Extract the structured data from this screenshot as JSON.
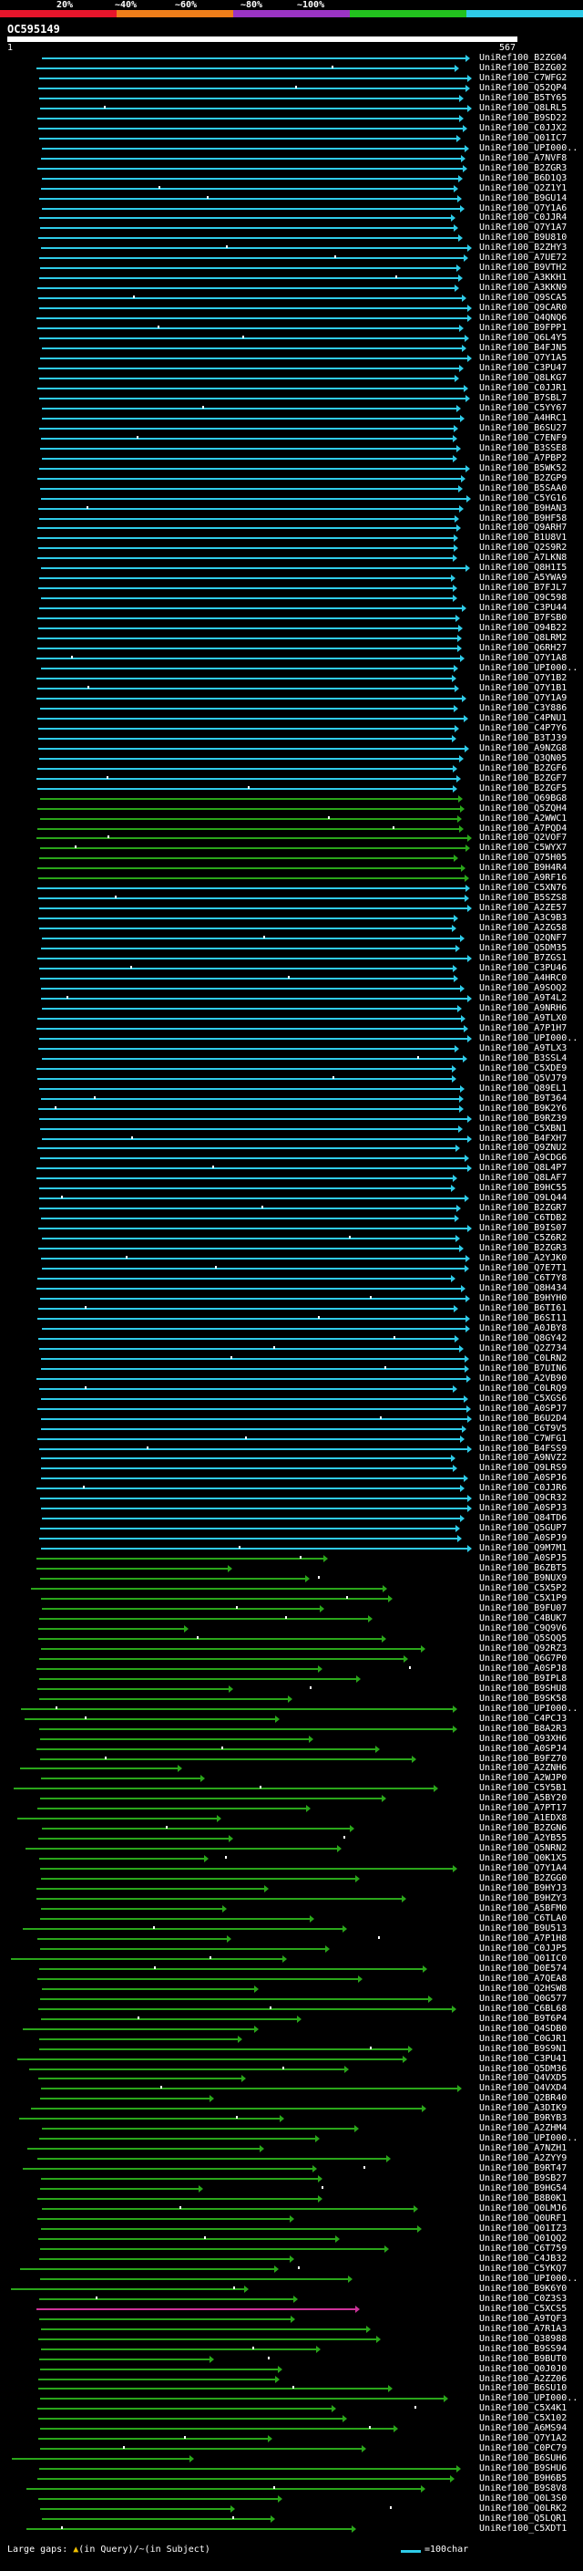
{
  "scale": {
    "labels": [
      "20%",
      "~40%",
      "~60%",
      "~80%",
      "~100%"
    ],
    "colors": [
      "#e8152b",
      "#f07e1a",
      "#9b34c4",
      "#22c21e",
      "#2ecbe8"
    ]
  },
  "query": {
    "id": "OC595149",
    "start": "1",
    "end": "567"
  },
  "colors": {
    "cyan": "#2ecbe8",
    "green": "#2aa61a",
    "magenta": "#cc3399",
    "query": "#ffffff"
  },
  "hits": [
    "UniRef100_B2ZG04",
    "UniRef100_B2ZG02",
    "UniRef100_C7WFG2",
    "UniRef100_Q52QP4",
    "UniRef100_B5TY65",
    "UniRef100_Q8LRL5",
    "UniRef100_B9SD22",
    "UniRef100_C0JJX2",
    "UniRef100_Q01IC7",
    "UniRef100_UPI000..",
    "UniRef100_A7NVF8",
    "UniRef100_B2ZGR3",
    "UniRef100_B6D1Q3",
    "UniRef100_Q2Z1Y1",
    "UniRef100_B9GU14",
    "UniRef100_Q7Y1A6",
    "UniRef100_C0JJR4",
    "UniRef100_Q7Y1A7",
    "UniRef100_B9U810",
    "UniRef100_B2ZHY3",
    "UniRef100_A7UE72",
    "UniRef100_B9VTH2",
    "UniRef100_A3KKH1",
    "UniRef100_A3KKN9",
    "UniRef100_Q9SCA5",
    "UniRef100_Q9CAR0",
    "UniRef100_Q4QNQ6",
    "UniRef100_B9FPP1",
    "UniRef100_Q6L4Y5",
    "UniRef100_B4FJN5",
    "UniRef100_Q7Y1A5",
    "UniRef100_C3PU47",
    "UniRef100_Q8LKG7",
    "UniRef100_C0JJR1",
    "UniRef100_B7SBL7",
    "UniRef100_C5YY67",
    "UniRef100_A4HRC1",
    "UniRef100_B6SU27",
    "UniRef100_C7ENF9",
    "UniRef100_B3SSE8",
    "UniRef100_A7PBP2",
    "UniRef100_B5WK52",
    "UniRef100_B2ZGP9",
    "UniRef100_B5SAA0",
    "UniRef100_C5YG16",
    "UniRef100_B9HAN3",
    "UniRef100_B9HF58",
    "UniRef100_Q9ARH7",
    "UniRef100_B1U8V1",
    "UniRef100_Q2S9R2",
    "UniRef100_A7LKN8",
    "UniRef100_Q8H1I5",
    "UniRef100_A5YWA9",
    "UniRef100_B7FJL7",
    "UniRef100_Q9C598",
    "UniRef100_C3PU44",
    "UniRef100_B7FSB0",
    "UniRef100_Q94B22",
    "UniRef100_Q8LRM2",
    "UniRef100_Q6RH27",
    "UniRef100_Q7Y1A8",
    "UniRef100_UPI000..",
    "UniRef100_Q7Y1B2",
    "UniRef100_Q7Y1B1",
    "UniRef100_Q7Y1A9",
    "UniRef100_C3Y886",
    "UniRef100_C4PNU1",
    "UniRef100_C4P7Y6",
    "UniRef100_B3TJ39",
    "UniRef100_A9NZG8",
    "UniRef100_Q3QN05",
    "UniRef100_B2ZGF6",
    "UniRef100_B2ZGF7",
    "UniRef100_B2ZGF5",
    "UniRef100_Q69BG8",
    "UniRef100_Q5ZQH4",
    "UniRef100_A2WWC1",
    "UniRef100_A7PQD4",
    "UniRef100_Q2VOF7",
    "UniRef100_C5WYX7",
    "UniRef100_Q75H05",
    "UniRef100_B9H4R4",
    "UniRef100_A9RF16",
    "UniRef100_C5XN76",
    "UniRef100_B5SZS8",
    "UniRef100_A2ZE57",
    "UniRef100_A3C9B3",
    "UniRef100_A2ZG58",
    "UniRef100_Q2QNF7",
    "UniRef100_Q5DM35",
    "UniRef100_B7ZGS1",
    "UniRef100_C3PU46",
    "UniRef100_A4HRC0",
    "UniRef100_A9SOQ2",
    "UniRef100_A9T4L2",
    "UniRef100_A9NRH6",
    "UniRef100_A9TLX0",
    "UniRef100_A7P1H7",
    "UniRef100_UPI000..",
    "UniRef100_A9TLX3",
    "UniRef100_B3SSL4",
    "UniRef100_C5XDE9",
    "UniRef100_Q5VJ79",
    "UniRef100_Q89EL1",
    "UniRef100_B9T364",
    "UniRef100_B9K2Y6",
    "UniRef100_B9RZ39",
    "UniRef100_C5XBN1",
    "UniRef100_B4FXH7",
    "UniRef100_Q9ZNU2",
    "UniRef100_A9CDG6",
    "UniRef100_Q8L4P7",
    "UniRef100_Q8LAF7",
    "UniRef100_B9HC55",
    "UniRef100_Q9LQ44",
    "UniRef100_B2ZGR7",
    "UniRef100_C6TDB2",
    "UniRef100_B9IS07",
    "UniRef100_C5Z6R2",
    "UniRef100_B2ZGR3",
    "UniRef100_A2YJK0",
    "UniRef100_Q7E7T1",
    "UniRef100_C6T7Y8",
    "UniRef100_Q8H434",
    "UniRef100_B9HYH0",
    "UniRef100_B6TI61",
    "UniRef100_B6SI11",
    "UniRef100_A0JBY8",
    "UniRef100_Q8GY42",
    "UniRef100_Q2Z734",
    "UniRef100_C0LRN2",
    "UniRef100_B7UIN6",
    "UniRef100_A2VB90",
    "UniRef100_C0LRQ9",
    "UniRef100_C5XGS6",
    "UniRef100_A0SPJ7",
    "UniRef100_B6U2D4",
    "UniRef100_C6T9V5",
    "UniRef100_C7WFG1",
    "UniRef100_B4FSS9",
    "UniRef100_A9NVZ2",
    "UniRef100_Q9LRS9",
    "UniRef100_A0SPJ6",
    "UniRef100_C0JJR6",
    "UniRef100_Q9CR32",
    "UniRef100_A0SPJ3",
    "UniRef100_Q84TD6",
    "UniRef100_Q5GUP7",
    "UniRef100_A0SPJ9",
    "UniRef100_Q9M7M1",
    "UniRef100_A0SPJ5",
    "UniRef100_B6ZBT5",
    "UniRef100_B9NUX9",
    "UniRef100_C5X5P2",
    "UniRef100_C5X1P9",
    "UniRef100_B9FU07",
    "UniRef100_C4BUK7",
    "UniRef100_C9Q9V6",
    "UniRef100_Q5SQQ5",
    "UniRef100_Q92RZ3",
    "UniRef100_Q6G7P0",
    "UniRef100_A0SPJ8",
    "UniRef100_B9IPL8",
    "UniRef100_B9SHU8",
    "UniRef100_B9SK58",
    "UniRef100_UPI000..",
    "UniRef100_C4PCJ3",
    "UniRef100_B8A2R3",
    "UniRef100_Q93XH6",
    "UniRef100_A0SPJ4",
    "UniRef100_B9FZ70",
    "UniRef100_A2ZNH6",
    "UniRef100_A2WJP0",
    "UniRef100_C5Y5B1",
    "UniRef100_A5BY20",
    "UniRef100_A7PT17",
    "UniRef100_A1EDX8",
    "UniRef100_B2ZGN6",
    "UniRef100_A2YB55",
    "UniRef100_Q5NRN2",
    "UniRef100_Q0K1X5",
    "UniRef100_Q7Y1A4",
    "UniRef100_B2ZGG0",
    "UniRef100_B9HYJ3",
    "UniRef100_B9HZY3",
    "UniRef100_A5BFM0",
    "UniRef100_C6TLA0",
    "UniRef100_B9U513",
    "UniRef100_A7P1H8",
    "UniRef100_C0JJP5",
    "UniRef100_Q01IC0",
    "UniRef100_D0E574",
    "UniRef100_A7QEA8",
    "UniRef100_Q2HSW8",
    "UniRef100_Q0G577",
    "UniRef100_C6BL68",
    "UniRef100_B9T6P4",
    "UniRef100_Q4SDB0",
    "UniRef100_C0GJR1",
    "UniRef100_B9S9N1",
    "UniRef100_C3PU41",
    "UniRef100_Q5DM36",
    "UniRef100_Q4VXD5",
    "UniRef100_Q4VXD4",
    "UniRef100_Q2BR40",
    "UniRef100_A3DIK9",
    "UniRef100_B9RYB3",
    "UniRef100_A2ZHM4",
    "UniRef100_UPI000..",
    "UniRef100_A7NZH1",
    "UniRef100_A2ZYY9",
    "UniRef100_B9RT47",
    "UniRef100_B9SB27",
    "UniRef100_B9HG54",
    "UniRef100_B8B0K1",
    "UniRef100_Q0LMJ6",
    "UniRef100_Q0URF1",
    "UniRef100_Q01IZ3",
    "UniRef100_Q01QQ2",
    "UniRef100_C6T759",
    "UniRef100_C4JB32",
    "UniRef100_C5YKQ7",
    "UniRef100_UPI000..",
    "UniRef100_B9K6Y0",
    "UniRef100_C0Z3S3",
    "UniRef100_C5XCS5",
    "UniRef100_A9TQF3",
    "UniRef100_A7R1A3",
    "UniRef100_Q38988",
    "UniRef100_B9SS94",
    "UniRef100_B9BUT0",
    "UniRef100_Q0J0J0",
    "UniRef100_A2ZZ06",
    "UniRef100_B6SU10",
    "UniRef100_UPI000..",
    "UniRef100_C5X4K1",
    "UniRef100_C5X102",
    "UniRef100_A6MS94",
    "UniRef100_Q7Y1A2",
    "UniRef100_C0PC79",
    "UniRef100_B6SUH6",
    "UniRef100_B9SHU6",
    "UniRef100_B9H6B5",
    "UniRef100_B9S8V8",
    "UniRef100_Q0L3S0",
    "UniRef100_Q0LRK2",
    "UniRef100_Q5LQR1",
    "UniRef100_C5XDT1"
  ],
  "legend": {
    "large_gaps": "Large gaps: ",
    "in_query": "(in Query)",
    "sep": "/~",
    "in_subject": "(in Subject)",
    "scale": "=100char"
  }
}
